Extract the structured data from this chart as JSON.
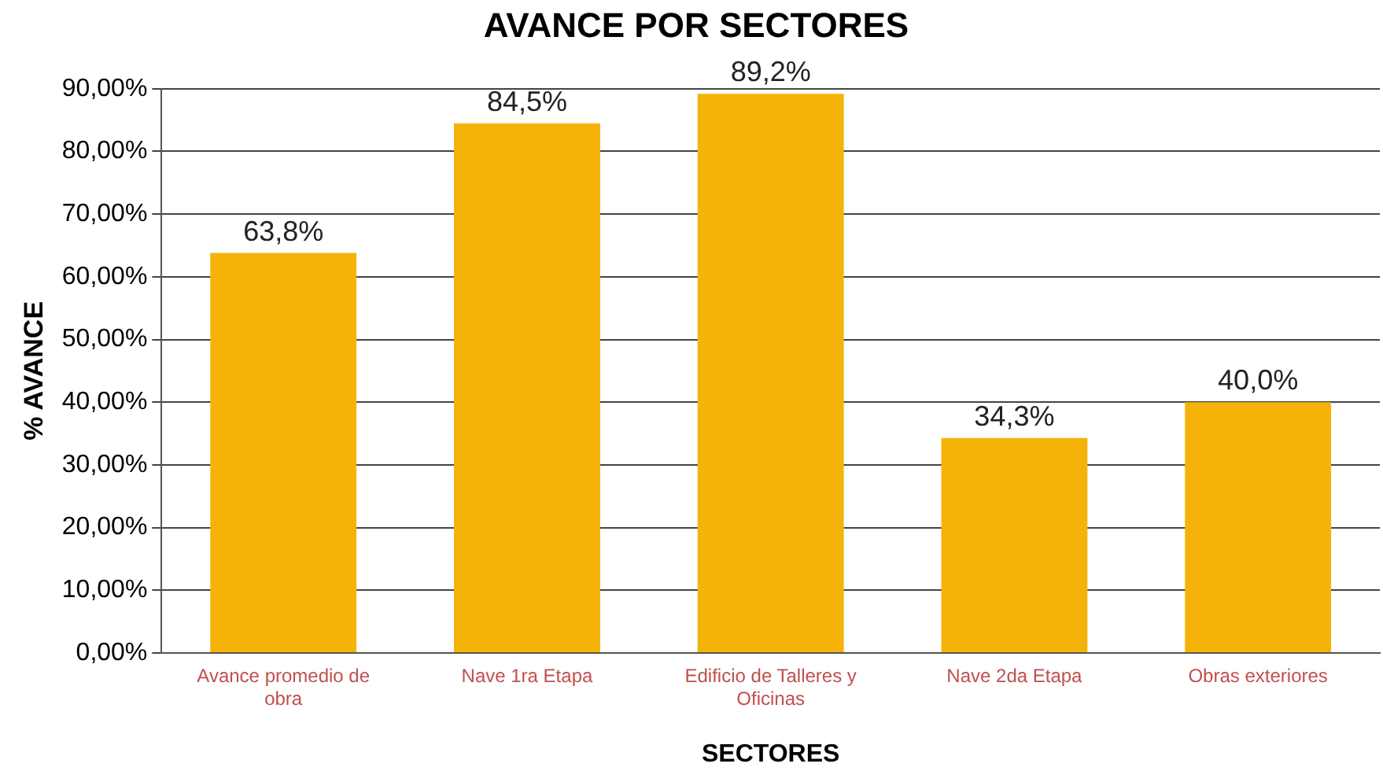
{
  "chart_data": {
    "type": "bar",
    "title": "AVANCE POR SECTORES",
    "xlabel": "SECTORES",
    "ylabel": "% AVANCE",
    "categories": [
      "Avance promedio de obra",
      "Nave 1ra Etapa",
      "Edificio de Talleres y Oficinas",
      "Nave 2da Etapa",
      "Obras exteriores"
    ],
    "values": [
      63.8,
      84.5,
      89.2,
      34.3,
      40.0
    ],
    "value_labels": [
      "63,8%",
      "84,5%",
      "89,2%",
      "34,3%",
      "40,0%"
    ],
    "color": "#f5b30a",
    "ylim": [
      0,
      90
    ],
    "yticks": [
      {
        "value": 0,
        "label": "0,00%"
      },
      {
        "value": 10,
        "label": "10,00%"
      },
      {
        "value": 20,
        "label": "20,00%"
      },
      {
        "value": 30,
        "label": "30,00%"
      },
      {
        "value": 40,
        "label": "40,00%"
      },
      {
        "value": 50,
        "label": "50,00%"
      },
      {
        "value": 60,
        "label": "60,00%"
      },
      {
        "value": 70,
        "label": "70,00%"
      },
      {
        "value": 80,
        "label": "80,00%"
      },
      {
        "value": 90,
        "label": "90,00%"
      }
    ],
    "grid": "y",
    "legend": false
  }
}
